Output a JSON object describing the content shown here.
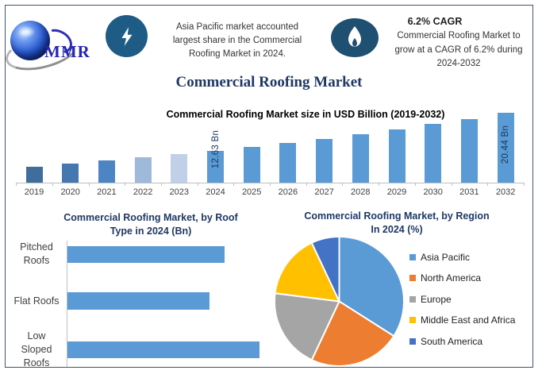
{
  "brand": {
    "logo_text": "MMR"
  },
  "header": {
    "insight_lines": [
      "Asia Pacific market accounted",
      "largest share in the Commercial",
      "Roofing Market in 2024."
    ],
    "cagr_heading": "6.2% CAGR",
    "cagr_lines": [
      "Commercial Roofing Market to",
      "grow at a CAGR of 6.2% during",
      "2024-2032"
    ]
  },
  "main_title": "Commercial Roofing Market",
  "icons": {
    "stat_left": "lightning-icon",
    "stat_right": "flame-icon",
    "brand": "globe-icon"
  },
  "colors": {
    "frame_border": "#44546a",
    "title_navy": "#1f3864",
    "badge_blue": "#1f5c85",
    "primary_bar_blue": "#5b9bd5",
    "label_navy": "#17365d"
  },
  "chart_data": [
    {
      "type": "bar",
      "title": "Commercial Roofing Market size in USD Billion (2019-2032)",
      "categories": [
        "2019",
        "2020",
        "2021",
        "2022",
        "2023",
        "2024",
        "2025",
        "2026",
        "2027",
        "2028",
        "2029",
        "2030",
        "2031",
        "2032"
      ],
      "values": [
        9.35,
        9.93,
        10.54,
        11.2,
        11.89,
        12.63,
        13.41,
        14.24,
        15.13,
        16.06,
        17.06,
        18.12,
        19.24,
        20.44
      ],
      "unit": "USD Billion",
      "point_labels": [
        {
          "index": 5,
          "text": "12.63 Bn"
        },
        {
          "index": 13,
          "text": "20.44 Bn"
        }
      ],
      "bar_colors": [
        "#3f6d9c",
        "#4478ae",
        "#4d85c4",
        "#9fb9da",
        "#bfd0e8",
        "#5b9bd5",
        "#5b9bd5",
        "#5b9bd5",
        "#5b9bd5",
        "#5b9bd5",
        "#5b9bd5",
        "#5b9bd5",
        "#5b9bd5",
        "#5b9bd5"
      ],
      "default_color": "#5b9bd5",
      "xlabel": "",
      "ylabel": "",
      "ylim": [
        6,
        21
      ],
      "grid": false,
      "legend_position": "none"
    },
    {
      "type": "bar",
      "orientation": "horizontal",
      "title": "Commercial Roofing Market, by Roof Type in 2024 (Bn)",
      "title_lines": [
        "Commercial Roofing Market, by Roof",
        "Type in 2024 (Bn)"
      ],
      "categories": [
        "Pitched Roofs",
        "Flat Roofs",
        "Low Sloped Roofs"
      ],
      "values": [
        4.1,
        3.7,
        5.0
      ],
      "unit": "Bn (estimated from bar lengths; no data labels shown)",
      "color": "#5b9bd5",
      "xlim": [
        0,
        5.2
      ],
      "grid": false,
      "legend_position": "none"
    },
    {
      "type": "pie",
      "title": "Commercial Roofing Market, by Region In 2024 (%)",
      "title_lines": [
        "Commercial Roofing Market, by Region",
        "In 2024 (%)"
      ],
      "labels": [
        "Asia Pacific",
        "North America",
        "Europe",
        "Middle East and Africa",
        "South America"
      ],
      "values": [
        34,
        23,
        20,
        16,
        7
      ],
      "unit": "% (estimated from slice angles; no data labels shown)",
      "colors": [
        "#5b9bd5",
        "#ed7d31",
        "#a5a5a5",
        "#ffc000",
        "#4472c4"
      ],
      "legend_position": "right",
      "start_angle": "12 o'clock, clockwise"
    }
  ]
}
